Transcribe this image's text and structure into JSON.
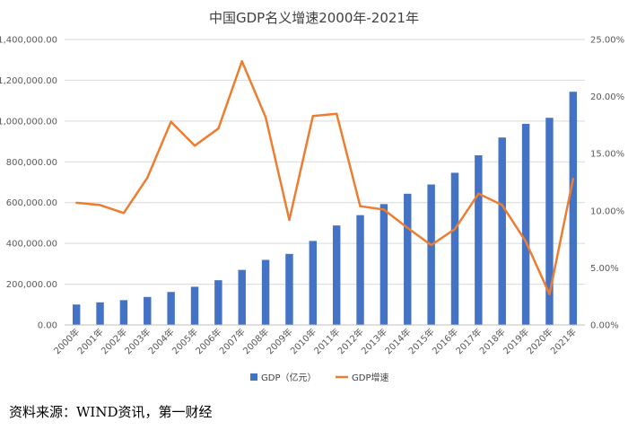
{
  "chart_data": {
    "type": "bar",
    "title": "中国GDP名义增速2000年-2021年",
    "categories": [
      "2000年",
      "2001年",
      "2002年",
      "2003年",
      "2004年",
      "2005年",
      "2006年",
      "2007年",
      "2008年",
      "2009年",
      "2010年",
      "2011年",
      "2012年",
      "2013年",
      "2014年",
      "2015年",
      "2016年",
      "2017年",
      "2018年",
      "2019年",
      "2020年",
      "2021年"
    ],
    "series": [
      {
        "name": "GDP（亿元）",
        "type": "bar",
        "axis": "left",
        "color": "#4472C4",
        "values": [
          100280,
          110863,
          121717,
          137422,
          161840,
          187319,
          219439,
          270092,
          319245,
          348518,
          412119,
          487940,
          538580,
          592963,
          643563,
          688858,
          746395,
          832036,
          919281,
          986515,
          1015986,
          1143670
        ]
      },
      {
        "name": "GDP增速",
        "type": "line",
        "axis": "right",
        "color": "#ED7D31",
        "values": [
          10.7,
          10.5,
          9.8,
          12.9,
          17.8,
          15.7,
          17.2,
          23.1,
          18.2,
          9.2,
          18.3,
          18.5,
          10.4,
          10.1,
          8.5,
          7.0,
          8.4,
          11.5,
          10.5,
          7.3,
          2.7,
          12.8
        ]
      }
    ],
    "y_left": {
      "min": 0,
      "max": 1400000,
      "step": 200000,
      "ticks": [
        "0.00",
        "200,000.00",
        "400,000.00",
        "600,000.00",
        "800,000.00",
        "1,000,000.00",
        "1,200,000.00",
        "1,400,000.00"
      ]
    },
    "y_right": {
      "min": 0,
      "max": 25,
      "step": 5,
      "ticks": [
        "0.00%",
        "5.00%",
        "10.00%",
        "15.00%",
        "20.00%",
        "25.00%"
      ]
    },
    "grid": true,
    "legend_position": "bottom"
  },
  "source": "资料来源：WIND资讯，第一财经"
}
